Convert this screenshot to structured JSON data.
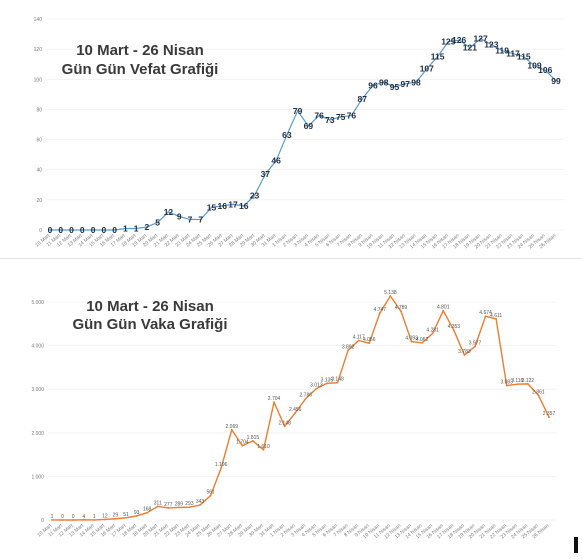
{
  "chart_data": [
    {
      "type": "line",
      "title": "10 Mart - 26 Nisan\nGün Gün Vefat Grafiği",
      "title_lines": [
        "10 Mart - 26 Nisan",
        "Gün Gün Vefat Grafiği"
      ],
      "xlabel": "",
      "ylabel": "",
      "ylim": [
        0,
        140
      ],
      "yticks": [
        0,
        20,
        40,
        60,
        80,
        100,
        120,
        140
      ],
      "grid": true,
      "legend": "none",
      "color": "#5b9bd5",
      "categories": [
        "10 Mart",
        "11 Mart",
        "12 Mart",
        "13 Mart",
        "14 Mart",
        "15 Mart",
        "16 Mart",
        "17 Mart",
        "18 Mart",
        "19 Mart",
        "20 Mart",
        "21 Mart",
        "22 Mart",
        "23 Mart",
        "24 Mart",
        "25 Mart",
        "26 Mart",
        "27 Mart",
        "28 Mart",
        "29 Mart",
        "30 Mart",
        "31 Mart",
        "1 Nisan",
        "2 Nisan",
        "3 Nisan",
        "4 Nisan",
        "5 Nisan",
        "6 Nisan",
        "7 Nisan",
        "8 Nisan",
        "9 Nisan",
        "10 Nisan",
        "11 Nisan",
        "12 Nisan",
        "13 Nisan",
        "14 Nisan",
        "15 Nisan",
        "16 Nisan",
        "17 Nisan",
        "18 Nisan",
        "19 Nisan",
        "20 Nisan",
        "21 Nisan",
        "22 Nisan",
        "23 Nisan",
        "24 Nisan",
        "25 Nisan",
        "26 Nisan"
      ],
      "values": [
        0,
        0,
        0,
        0,
        0,
        0,
        0,
        1,
        1,
        2,
        5,
        12,
        9,
        7,
        7,
        15,
        16,
        17,
        16,
        23,
        37,
        46,
        63,
        79,
        69,
        76,
        73,
        75,
        76,
        87,
        96,
        98,
        95,
        97,
        98,
        107,
        115,
        125,
        126,
        121,
        127,
        123,
        119,
        117,
        115,
        109,
        106,
        99
      ],
      "point_labels": [
        "0",
        "0",
        "0",
        "0",
        "0",
        "0",
        "0",
        "1",
        "1",
        "2",
        "5",
        "12",
        "9",
        "7",
        "7",
        "15",
        "16",
        "17",
        "16",
        "23",
        "37",
        "46",
        "63",
        "79",
        "69",
        "76",
        "73",
        "75",
        "76",
        "87",
        "96",
        "98",
        "95",
        "97",
        "98",
        "107",
        "115",
        "125",
        "126",
        "121",
        "127",
        "123",
        "119",
        "117",
        "115",
        "109",
        "106",
        "99"
      ]
    },
    {
      "type": "line",
      "title": "10 Mart - 26 Nisan\nGün Gün Vaka Grafiği",
      "title_lines": [
        "10 Mart - 26 Nisan",
        "Gün Gün Vaka Grafiği"
      ],
      "xlabel": "",
      "ylabel": "",
      "ylim": [
        0,
        5000
      ],
      "yticks": [
        0,
        1000,
        2000,
        3000,
        4000,
        5000
      ],
      "ytick_labels": [
        "0",
        "1.000",
        "2.000",
        "3.000",
        "4.000",
        "5.000"
      ],
      "grid": true,
      "legend": "none",
      "color": "#ed7d31",
      "categories": [
        "10 Mart",
        "11 Mart",
        "12 Mart",
        "13 Mart",
        "14 Mart",
        "15 Mart",
        "16 Mart",
        "17 Mart",
        "18 Mart",
        "19 Mart",
        "20 Mart",
        "21 Mart",
        "22 Mart",
        "23 Mart",
        "24 Mart",
        "25 Mart",
        "26 Mart",
        "27 Mart",
        "28 Mart",
        "29 Mart",
        "30 Mart",
        "31 Mart",
        "1 Nisan",
        "2 Nisan",
        "3 Nisan",
        "4 Nisan",
        "5 Nisan",
        "6 Nisan",
        "7 Nisan",
        "8 Nisan",
        "9 Nisan",
        "10 Nisan",
        "11 Nisan",
        "12 Nisan",
        "13 Nisan",
        "14 Nisan",
        "15 Nisan",
        "16 Nisan",
        "17 Nisan",
        "18 Nisan",
        "19 Nisan",
        "20 Nisan",
        "21 Nisan",
        "22 Nisan",
        "23 Nisan",
        "24 Nisan",
        "25 Nisan",
        "26 Nisan"
      ],
      "values": [
        1,
        0,
        0,
        4,
        1,
        12,
        29,
        51,
        93,
        168,
        311,
        277,
        289,
        293,
        343,
        561,
        1196,
        2069,
        1704,
        1815,
        1610,
        2704,
        2148,
        2456,
        2786,
        3013,
        3135,
        3148,
        3892,
        4117,
        4056,
        4747,
        5138,
        4789,
        4093,
        4062,
        4281,
        4801,
        4353,
        3783,
        3977,
        4674,
        4611,
        3083,
        3116,
        3122,
        2861,
        2357
      ],
      "point_labels": [
        "1",
        "0",
        "0",
        "4",
        "1",
        "12",
        "29",
        "51",
        "93",
        "168",
        "311",
        "277",
        "289",
        "293",
        "343",
        "561",
        "1.196",
        "2.069",
        "1.704",
        "1.815",
        "1.610",
        "2.704",
        "2.148",
        "2.456",
        "2.786",
        "3.013",
        "3.135",
        "3.148",
        "3.892",
        "4.117",
        "4.056",
        "4.747",
        "5.138",
        "4.789",
        "4.093",
        "4.062",
        "4.281",
        "4.801",
        "4.353",
        "3.783",
        "3.977",
        "4.674",
        "4.611",
        "3.083",
        "3.116",
        "3.122",
        "2.861",
        "2.357"
      ]
    }
  ]
}
